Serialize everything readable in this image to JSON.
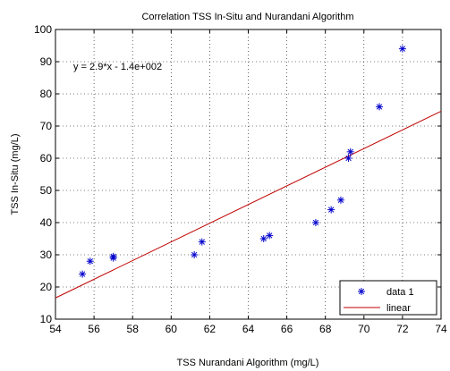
{
  "chart_data": {
    "type": "scatter",
    "title": "Correlation TSS In-Situ and Nurandani Algorithm",
    "xlabel": "TSS Nurandani Algorithm (mg/L)",
    "ylabel": "TSS In-Situ (mg/L)",
    "xlim": [
      54,
      74
    ],
    "ylim": [
      10,
      100
    ],
    "xticks": [
      54,
      56,
      58,
      60,
      62,
      64,
      66,
      68,
      70,
      72,
      74
    ],
    "yticks": [
      10,
      20,
      30,
      40,
      50,
      60,
      70,
      80,
      90,
      100
    ],
    "grid": true,
    "annotation": "y = 2.9*x - 1.4e+002",
    "legend_position": "bottom-right",
    "series": [
      {
        "name": "data 1",
        "type": "scatter",
        "color": "#0000cc",
        "marker": "asterisk",
        "x": [
          55.4,
          55.8,
          57.0,
          57.0,
          61.2,
          61.6,
          64.8,
          65.1,
          67.5,
          68.3,
          68.8,
          69.2,
          69.3,
          70.8,
          72.0
        ],
        "y": [
          24,
          28,
          29,
          29.5,
          30,
          34,
          35,
          36,
          40,
          44,
          47,
          60,
          62,
          76,
          94
        ]
      },
      {
        "name": "linear",
        "type": "line",
        "color": "#c00000",
        "slope": 2.9,
        "intercept": -140
      }
    ]
  }
}
